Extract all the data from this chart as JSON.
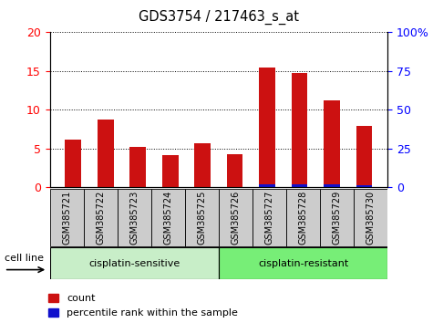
{
  "title": "GDS3754 / 217463_s_at",
  "samples": [
    "GSM385721",
    "GSM385722",
    "GSM385723",
    "GSM385724",
    "GSM385725",
    "GSM385726",
    "GSM385727",
    "GSM385728",
    "GSM385729",
    "GSM385730"
  ],
  "count_values": [
    6.2,
    8.8,
    5.2,
    4.1,
    5.7,
    4.3,
    15.4,
    14.8,
    11.2,
    7.9
  ],
  "percentile_values": [
    0.35,
    0.45,
    0.3,
    0.3,
    0.35,
    0.35,
    1.75,
    1.8,
    2.2,
    1.4
  ],
  "left_ylim": [
    0,
    20
  ],
  "right_ylim": [
    0,
    100
  ],
  "left_yticks": [
    0,
    5,
    10,
    15,
    20
  ],
  "right_yticks": [
    0,
    25,
    50,
    75,
    100
  ],
  "right_yticklabels": [
    "0",
    "25",
    "50",
    "75",
    "100%"
  ],
  "bar_color_red": "#cc1111",
  "bar_color_blue": "#1111cc",
  "group1_label": "cisplatin-sensitive",
  "group2_label": "cisplatin-resistant",
  "group1_color": "#c8eec8",
  "group2_color": "#77ee77",
  "cell_line_label": "cell line",
  "legend_count": "count",
  "legend_percentile": "percentile rank within the sample",
  "bg_color": "#ffffff",
  "sample_box_color": "#cccccc",
  "bar_width": 0.5
}
